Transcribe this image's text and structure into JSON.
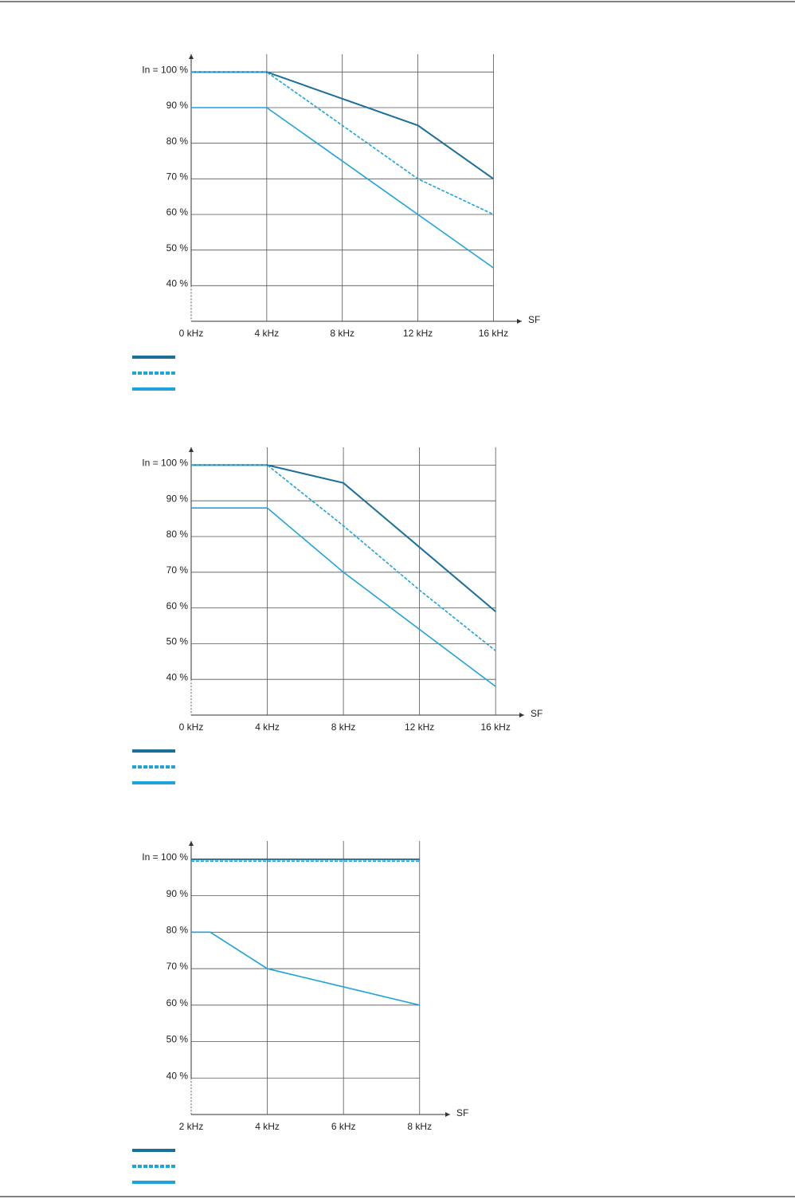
{
  "chart_data": [
    {
      "type": "line",
      "x_label": "SF",
      "x": [
        0,
        4,
        12,
        16
      ],
      "xlim": [
        0,
        17.5
      ],
      "xticks": [
        {
          "value": 0,
          "label": "0 kHz"
        },
        {
          "value": 4,
          "label": "4 kHz"
        },
        {
          "value": 8,
          "label": "8 kHz"
        },
        {
          "value": 12,
          "label": "12 kHz"
        },
        {
          "value": 16,
          "label": "16 kHz"
        }
      ],
      "ylim": [
        30,
        105
      ],
      "yticks": [
        {
          "value": 100,
          "label": "In = 100 %"
        },
        {
          "value": 90,
          "label": "90 %"
        },
        {
          "value": 80,
          "label": "80 %"
        },
        {
          "value": 70,
          "label": "70 %"
        },
        {
          "value": 60,
          "label": "60 %"
        },
        {
          "value": 50,
          "label": "50 %"
        },
        {
          "value": 40,
          "label": "40 %"
        }
      ],
      "grid": true,
      "series": [
        {
          "color": "#1b6f9b",
          "dashed": false,
          "values": [
            100,
            100,
            85,
            70
          ]
        },
        {
          "color": "#1ea3dc",
          "dashed": true,
          "values": [
            100,
            100,
            70,
            60
          ]
        },
        {
          "color": "#1ea3dc",
          "dashed": false,
          "values": [
            90,
            90,
            60,
            45
          ]
        }
      ]
    },
    {
      "type": "line",
      "x_label": "SF",
      "x": [
        0,
        4,
        8,
        12,
        16
      ],
      "xlim": [
        0,
        17.5
      ],
      "xticks": [
        {
          "value": 0,
          "label": "0 kHz"
        },
        {
          "value": 4,
          "label": "4 kHz"
        },
        {
          "value": 8,
          "label": "8 kHz"
        },
        {
          "value": 12,
          "label": "12 kHz"
        },
        {
          "value": 16,
          "label": "16 kHz"
        }
      ],
      "ylim": [
        30,
        105
      ],
      "yticks": [
        {
          "value": 100,
          "label": "In = 100 %"
        },
        {
          "value": 90,
          "label": "90 %"
        },
        {
          "value": 80,
          "label": "80 %"
        },
        {
          "value": 70,
          "label": "70 %"
        },
        {
          "value": 60,
          "label": "60 %"
        },
        {
          "value": 50,
          "label": "50 %"
        },
        {
          "value": 40,
          "label": "40 %"
        }
      ],
      "grid": true,
      "series": [
        {
          "color": "#1b6f9b",
          "dashed": false,
          "values": [
            100,
            100,
            95,
            77,
            59
          ]
        },
        {
          "color": "#1ea3dc",
          "dashed": true,
          "values": [
            100,
            100,
            83,
            65,
            48
          ]
        },
        {
          "color": "#1ea3dc",
          "dashed": false,
          "values": [
            88,
            88,
            70,
            54,
            38
          ]
        }
      ]
    },
    {
      "type": "line",
      "x_label": "SF",
      "x": [
        2,
        2.5,
        4,
        6,
        8
      ],
      "xlim": [
        2,
        8.8
      ],
      "xticks": [
        {
          "value": 2,
          "label": "2 kHz"
        },
        {
          "value": 4,
          "label": "4 kHz"
        },
        {
          "value": 6,
          "label": "6 kHz"
        },
        {
          "value": 8,
          "label": "8 kHz"
        }
      ],
      "ylim": [
        30,
        105
      ],
      "yticks": [
        {
          "value": 100,
          "label": "In = 100 %"
        },
        {
          "value": 90,
          "label": "90 %"
        },
        {
          "value": 80,
          "label": "80 %"
        },
        {
          "value": 70,
          "label": "70 %"
        },
        {
          "value": 60,
          "label": "60 %"
        },
        {
          "value": 50,
          "label": "50 %"
        },
        {
          "value": 40,
          "label": "40 %"
        }
      ],
      "grid": true,
      "series": [
        {
          "color": "#1b6f9b",
          "dashed": false,
          "values": [
            100,
            100,
            100,
            100,
            100
          ]
        },
        {
          "color": "#1ea3dc",
          "dashed": true,
          "values": [
            99.5,
            99.5,
            99.5,
            99.5,
            99.5
          ]
        },
        {
          "color": "#1ea3dc",
          "dashed": false,
          "values": [
            80,
            80,
            70,
            65,
            60
          ]
        }
      ]
    }
  ]
}
